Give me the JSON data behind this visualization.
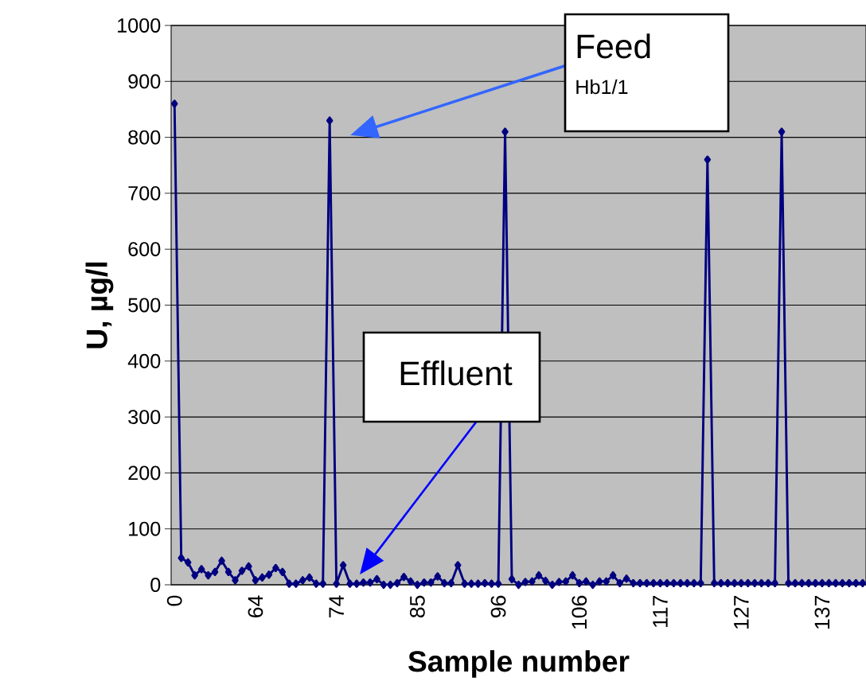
{
  "chart_data": {
    "type": "line",
    "xlabel": "Sample number",
    "ylabel": "U, µg/l",
    "categories": [
      "0",
      null,
      null,
      null,
      null,
      null,
      null,
      null,
      null,
      null,
      null,
      null,
      "64",
      null,
      null,
      null,
      null,
      null,
      null,
      null,
      null,
      null,
      null,
      null,
      "74",
      null,
      null,
      null,
      null,
      null,
      null,
      null,
      null,
      null,
      null,
      null,
      "85",
      null,
      null,
      null,
      null,
      null,
      null,
      null,
      null,
      null,
      null,
      null,
      "96",
      null,
      null,
      null,
      null,
      null,
      null,
      null,
      null,
      null,
      null,
      null,
      "106",
      null,
      null,
      null,
      null,
      null,
      null,
      null,
      null,
      null,
      null,
      null,
      "117",
      null,
      null,
      null,
      null,
      null,
      null,
      null,
      null,
      null,
      null,
      null,
      "127",
      null,
      null,
      null,
      null,
      null,
      null,
      null,
      null,
      null,
      null,
      null,
      "137",
      null,
      null,
      null,
      null,
      null,
      null
    ],
    "series": [
      {
        "color": "#000080",
        "values": [
          860,
          48,
          40,
          17,
          28,
          17,
          23,
          43,
          23,
          8,
          25,
          33,
          8,
          13,
          18,
          30,
          23,
          2,
          2,
          8,
          13,
          2,
          2,
          830,
          2,
          35,
          2,
          2,
          4,
          4,
          10,
          0,
          0,
          3,
          14,
          6,
          0,
          4,
          4,
          15,
          3,
          3,
          35,
          2,
          2,
          2,
          3,
          2,
          2,
          810,
          10,
          0,
          5,
          6,
          17,
          7,
          0,
          5,
          6,
          17,
          3,
          6,
          0,
          6,
          6,
          17,
          3,
          11,
          3,
          3,
          3,
          3,
          3,
          3,
          3,
          3,
          3,
          3,
          3,
          760,
          3,
          3,
          3,
          3,
          3,
          3,
          3,
          3,
          3,
          3,
          810,
          3,
          3,
          3,
          3,
          3,
          3,
          3,
          3,
          3,
          3,
          3,
          3
        ]
      }
    ],
    "ylim": [
      0,
      1000
    ],
    "yticks": [
      0,
      100,
      200,
      300,
      400,
      500,
      600,
      700,
      800,
      900,
      1000
    ],
    "grid": "y",
    "marker": "diamond",
    "line_style": "solid",
    "annotations": [
      "Feed",
      "Hb1/1",
      "Effluent"
    ]
  }
}
